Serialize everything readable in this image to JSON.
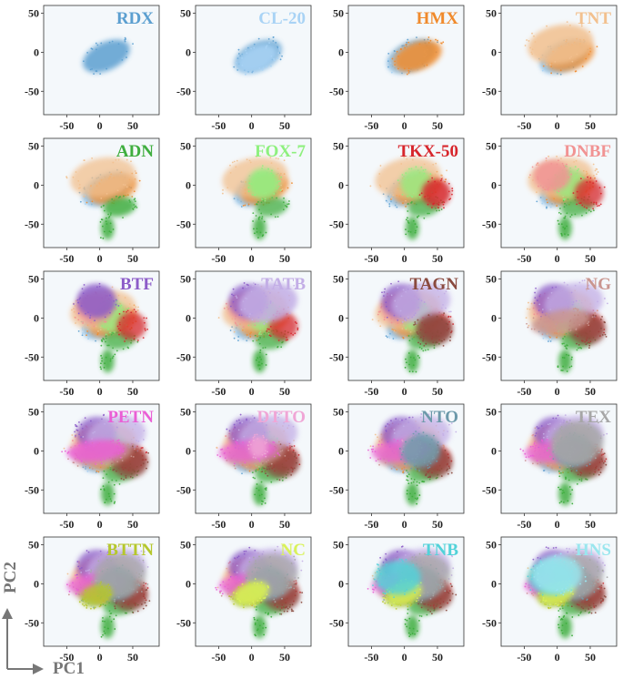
{
  "axis_titles": {
    "x": "PC1",
    "y": "PC2"
  },
  "chart_data": {
    "type": "scatter",
    "grid": "5x4 small multiples, cumulative overlay",
    "x_ticks": [
      -50,
      0,
      50
    ],
    "y_ticks": [
      50,
      0,
      -50
    ],
    "xlim": [
      -85,
      90
    ],
    "ylim": [
      -80,
      60
    ],
    "panels": [
      {
        "name": "RDX",
        "color": "#5b9fd0"
      },
      {
        "name": "CL-20",
        "color": "#a9d3f5"
      },
      {
        "name": "HMX",
        "color": "#f08a2c"
      },
      {
        "name": "TNT",
        "color": "#f2c08e"
      },
      {
        "name": "ADN",
        "color": "#3fae3f"
      },
      {
        "name": "FOX-7",
        "color": "#8ef07e"
      },
      {
        "name": "TKX-50",
        "color": "#d7262c"
      },
      {
        "name": "DNBF",
        "color": "#f19393"
      },
      {
        "name": "BTF",
        "color": "#8c5cc8"
      },
      {
        "name": "TATB",
        "color": "#c3aee6"
      },
      {
        "name": "TAGN",
        "color": "#8a4a3f"
      },
      {
        "name": "NG",
        "color": "#c9958f"
      },
      {
        "name": "PETN",
        "color": "#ea5fd5"
      },
      {
        "name": "DTTO",
        "color": "#f0a6d6"
      },
      {
        "name": "NTO",
        "color": "#6c99aa"
      },
      {
        "name": "TEX",
        "color": "#a6a6a6"
      },
      {
        "name": "BTTN",
        "color": "#b5c72c"
      },
      {
        "name": "NC",
        "color": "#d9f25a"
      },
      {
        "name": "TNB",
        "color": "#52d2d9"
      },
      {
        "name": "HNS",
        "color": "#9ae6ee"
      }
    ],
    "clusters": {
      "RDX": {
        "cx": 10,
        "cy": -5,
        "rx": 38,
        "ry": 18,
        "rot": 25
      },
      "CL-20": {
        "cx": 8,
        "cy": -8,
        "rx": 32,
        "ry": 15,
        "rot": 25
      },
      "HMX": {
        "cx": 20,
        "cy": -5,
        "rx": 38,
        "ry": 18,
        "rot": 20
      },
      "TNT": {
        "cx": 5,
        "cy": 10,
        "rx": 50,
        "ry": 25,
        "rot": 10
      },
      "ADN": {
        "cx": 30,
        "cy": -28,
        "rx": 25,
        "ry": 12,
        "rot": 10
      },
      "FOX-7": {
        "cx": 18,
        "cy": 2,
        "rx": 24,
        "ry": 20,
        "rot": 0
      },
      "TKX-50": {
        "cx": 48,
        "cy": -10,
        "rx": 22,
        "ry": 18,
        "rot": 0
      },
      "DNBF": {
        "cx": -8,
        "cy": 12,
        "rx": 28,
        "ry": 20,
        "rot": 0
      },
      "BTF": {
        "cx": -5,
        "cy": 22,
        "rx": 30,
        "ry": 22,
        "rot": 0
      },
      "TATB": {
        "cx": 25,
        "cy": 20,
        "rx": 45,
        "ry": 25,
        "rot": 10
      },
      "TAGN": {
        "cx": 45,
        "cy": -15,
        "rx": 28,
        "ry": 20,
        "rot": 0
      },
      "NG": {
        "cx": 5,
        "cy": -5,
        "rx": 45,
        "ry": 15,
        "rot": 10
      },
      "PETN": {
        "cx": -5,
        "cy": 0,
        "rx": 45,
        "ry": 14,
        "rot": 5
      },
      "DTTO": {
        "cx": 10,
        "cy": 5,
        "rx": 14,
        "ry": 14,
        "rot": 0
      },
      "NTO": {
        "cx": 25,
        "cy": 0,
        "rx": 30,
        "ry": 22,
        "rot": 10
      },
      "TEX": {
        "cx": 30,
        "cy": 10,
        "rx": 40,
        "ry": 28,
        "rot": 10
      },
      "BTTN": {
        "cx": -5,
        "cy": -15,
        "rx": 25,
        "ry": 14,
        "rot": 15
      },
      "NC": {
        "cx": 0,
        "cy": -12,
        "rx": 28,
        "ry": 14,
        "rot": 20
      },
      "TNB": {
        "cx": -10,
        "cy": 8,
        "rx": 35,
        "ry": 22,
        "rot": 0
      },
      "HNS": {
        "cx": 0,
        "cy": 12,
        "rx": 38,
        "ry": 25,
        "rot": 0
      }
    },
    "tail": {
      "cx": 12,
      "cy": -55,
      "rx": 10,
      "ry": 15
    }
  }
}
